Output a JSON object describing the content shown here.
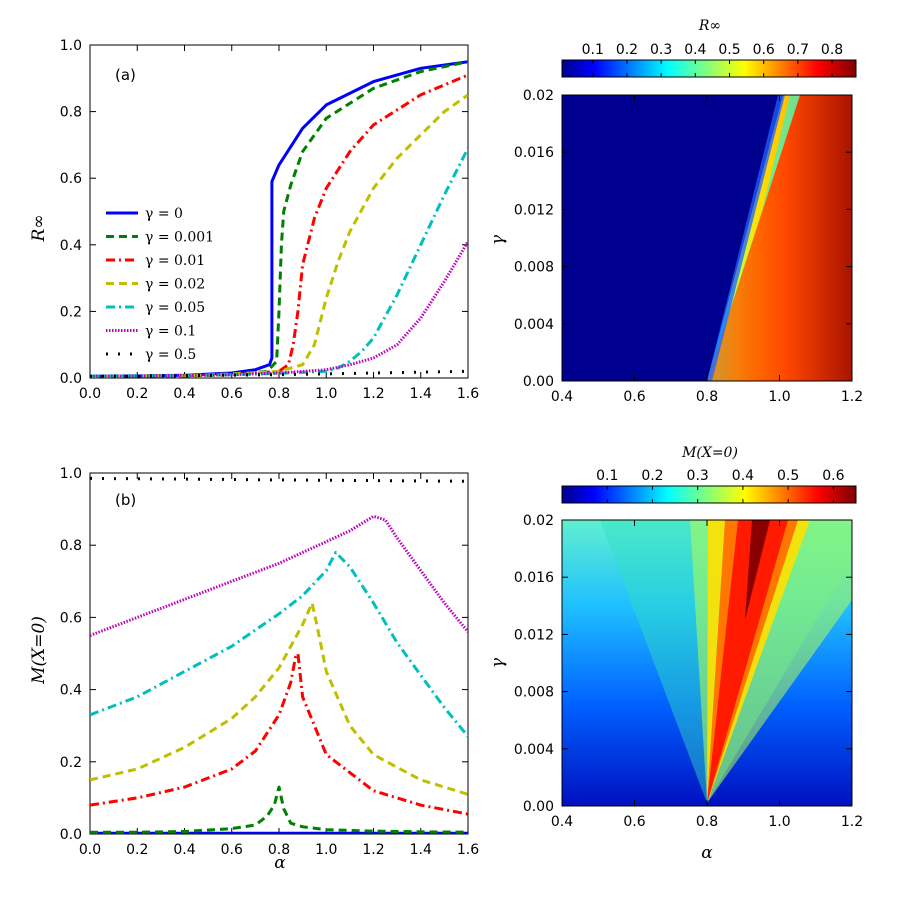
{
  "chart_data": [
    {
      "panel_id": "a",
      "type": "line",
      "panel_label": "(a)",
      "xlabel": "α",
      "ylabel": "R∞",
      "xlim": [
        0,
        1.6
      ],
      "ylim": [
        0,
        1.0
      ],
      "xticks": [
        "0.0",
        "0.2",
        "0.4",
        "0.6",
        "0.8",
        "1.0",
        "1.2",
        "1.4",
        "1.6"
      ],
      "yticks": [
        "0.0",
        "0.2",
        "0.4",
        "0.6",
        "0.8",
        "1.0"
      ],
      "legend_position": "left",
      "series": [
        {
          "name": "γ = 0",
          "color": "#0000ff",
          "style": "solid",
          "x": [
            0,
            0.2,
            0.4,
            0.6,
            0.7,
            0.76,
            0.77,
            0.77,
            0.8,
            0.9,
            1.0,
            1.2,
            1.4,
            1.6
          ],
          "y": [
            0.005,
            0.006,
            0.008,
            0.015,
            0.025,
            0.04,
            0.06,
            0.59,
            0.64,
            0.75,
            0.82,
            0.89,
            0.93,
            0.95
          ]
        },
        {
          "name": "γ = 0.001",
          "color": "#008000",
          "style": "dashed",
          "x": [
            0,
            0.4,
            0.6,
            0.75,
            0.79,
            0.8,
            0.81,
            0.82,
            0.85,
            0.9,
            1.0,
            1.2,
            1.4,
            1.6
          ],
          "y": [
            0.005,
            0.006,
            0.01,
            0.02,
            0.05,
            0.2,
            0.4,
            0.5,
            0.58,
            0.68,
            0.78,
            0.87,
            0.92,
            0.95
          ]
        },
        {
          "name": "γ = 0.01",
          "color": "#ff0000",
          "style": "dashdot",
          "x": [
            0,
            0.4,
            0.6,
            0.8,
            0.84,
            0.86,
            0.88,
            0.9,
            0.95,
            1.0,
            1.1,
            1.2,
            1.4,
            1.6
          ],
          "y": [
            0.005,
            0.007,
            0.01,
            0.02,
            0.04,
            0.1,
            0.2,
            0.34,
            0.48,
            0.57,
            0.68,
            0.76,
            0.85,
            0.91
          ]
        },
        {
          "name": "γ = 0.02",
          "color": "#bfbf00",
          "style": "dashed",
          "x": [
            0,
            0.4,
            0.6,
            0.8,
            0.9,
            0.95,
            1.0,
            1.05,
            1.1,
            1.2,
            1.3,
            1.4,
            1.5,
            1.6
          ],
          "y": [
            0.005,
            0.007,
            0.012,
            0.02,
            0.04,
            0.1,
            0.24,
            0.35,
            0.44,
            0.57,
            0.66,
            0.73,
            0.8,
            0.85
          ]
        },
        {
          "name": "γ = 0.05",
          "color": "#00bfbf",
          "style": "dashdot",
          "x": [
            0,
            0.4,
            0.6,
            0.8,
            1.0,
            1.05,
            1.1,
            1.15,
            1.2,
            1.3,
            1.4,
            1.5,
            1.6
          ],
          "y": [
            0.006,
            0.008,
            0.01,
            0.014,
            0.02,
            0.03,
            0.05,
            0.08,
            0.12,
            0.25,
            0.4,
            0.55,
            0.69
          ]
        },
        {
          "name": "γ = 0.1",
          "color": "#bf00bf",
          "style": "dotted",
          "x": [
            0,
            0.2,
            0.4,
            0.6,
            0.8,
            1.0,
            1.1,
            1.2,
            1.3,
            1.4,
            1.5,
            1.6
          ],
          "y": [
            0.005,
            0.006,
            0.008,
            0.01,
            0.015,
            0.025,
            0.04,
            0.06,
            0.1,
            0.18,
            0.29,
            0.41
          ]
        },
        {
          "name": "γ = 0.5",
          "color": "#000000",
          "style": "dotted-sparse",
          "x": [
            0,
            0.4,
            0.8,
            1.2,
            1.6
          ],
          "y": [
            0.005,
            0.007,
            0.01,
            0.015,
            0.02
          ]
        }
      ]
    },
    {
      "panel_id": "b",
      "type": "line",
      "panel_label": "(b)",
      "xlabel": "α",
      "ylabel": "M(X=0)",
      "xlim": [
        0,
        1.6
      ],
      "ylim": [
        0,
        1.0
      ],
      "xticks": [
        "0.0",
        "0.2",
        "0.4",
        "0.6",
        "0.8",
        "1.0",
        "1.2",
        "1.4",
        "1.6"
      ],
      "yticks": [
        "0.0",
        "0.2",
        "0.4",
        "0.6",
        "0.8",
        "1.0"
      ],
      "series": [
        {
          "name": "γ = 0",
          "color": "#0000ff",
          "style": "solid",
          "x": [
            0,
            1.6
          ],
          "y": [
            0.002,
            0.002
          ]
        },
        {
          "name": "γ = 0.001",
          "color": "#008000",
          "style": "dashed",
          "x": [
            0,
            0.2,
            0.4,
            0.6,
            0.7,
            0.75,
            0.78,
            0.8,
            0.82,
            0.85,
            0.9,
            1.0,
            1.2,
            1.4,
            1.6
          ],
          "y": [
            0.005,
            0.005,
            0.007,
            0.015,
            0.025,
            0.05,
            0.08,
            0.13,
            0.07,
            0.03,
            0.02,
            0.012,
            0.008,
            0.006,
            0.005
          ]
        },
        {
          "name": "γ = 0.01",
          "color": "#ff0000",
          "style": "dashdot",
          "x": [
            0,
            0.2,
            0.4,
            0.6,
            0.7,
            0.8,
            0.85,
            0.87,
            0.88,
            0.9,
            1.0,
            1.2,
            1.4,
            1.6
          ],
          "y": [
            0.08,
            0.1,
            0.13,
            0.18,
            0.23,
            0.33,
            0.42,
            0.49,
            0.5,
            0.38,
            0.22,
            0.12,
            0.08,
            0.055
          ]
        },
        {
          "name": "γ = 0.02",
          "color": "#bfbf00",
          "style": "dashed",
          "x": [
            0,
            0.2,
            0.4,
            0.6,
            0.7,
            0.8,
            0.9,
            0.94,
            0.96,
            1.0,
            1.1,
            1.2,
            1.4,
            1.6
          ],
          "y": [
            0.15,
            0.18,
            0.24,
            0.32,
            0.38,
            0.46,
            0.58,
            0.64,
            0.58,
            0.45,
            0.3,
            0.22,
            0.15,
            0.11
          ]
        },
        {
          "name": "γ = 0.05",
          "color": "#00bfbf",
          "style": "dashdot",
          "x": [
            0,
            0.2,
            0.4,
            0.6,
            0.8,
            0.9,
            1.0,
            1.04,
            1.1,
            1.2,
            1.3,
            1.4,
            1.5,
            1.6
          ],
          "y": [
            0.33,
            0.38,
            0.45,
            0.52,
            0.61,
            0.66,
            0.73,
            0.78,
            0.74,
            0.64,
            0.53,
            0.44,
            0.35,
            0.27
          ]
        },
        {
          "name": "γ = 0.1",
          "color": "#bf00bf",
          "style": "dotted",
          "x": [
            0,
            0.2,
            0.4,
            0.6,
            0.8,
            1.0,
            1.1,
            1.2,
            1.25,
            1.3,
            1.4,
            1.5,
            1.6
          ],
          "y": [
            0.55,
            0.6,
            0.65,
            0.7,
            0.75,
            0.81,
            0.84,
            0.88,
            0.87,
            0.82,
            0.73,
            0.64,
            0.56
          ]
        },
        {
          "name": "γ = 0.5",
          "color": "#000000",
          "style": "dotted-sparse",
          "x": [
            0,
            0.4,
            0.8,
            1.2,
            1.6
          ],
          "y": [
            0.985,
            0.983,
            0.981,
            0.979,
            0.977
          ]
        }
      ]
    },
    {
      "panel_id": "c",
      "type": "heatmap",
      "colorbar_label": "R∞",
      "colorbar_ticks": [
        "0.1",
        "0.2",
        "0.3",
        "0.4",
        "0.5",
        "0.6",
        "0.7",
        "0.8"
      ],
      "colorbar_range": [
        0.01,
        0.87
      ],
      "xlabel": "",
      "ylabel": "γ",
      "xlim": [
        0.4,
        1.2
      ],
      "ylim": [
        0,
        0.02
      ],
      "xticks": [
        "0.4",
        "0.6",
        "0.8",
        "1.0",
        "1.2"
      ],
      "yticks": [
        "0.00",
        "0.004",
        "0.008",
        "0.012",
        "0.016",
        "0.02"
      ],
      "colormap": "jet",
      "description_boundary": "transition from α≈0.8 at γ=0 to α≈0.95 at γ=0.02"
    },
    {
      "panel_id": "d",
      "type": "heatmap",
      "colorbar_label": "M(X=0)",
      "colorbar_ticks": [
        "0.1",
        "0.2",
        "0.3",
        "0.4",
        "0.5",
        "0.6"
      ],
      "colorbar_range": [
        0.0,
        0.65
      ],
      "xlabel": "α",
      "ylabel": "γ",
      "xlim": [
        0.4,
        1.2
      ],
      "ylim": [
        0,
        0.02
      ],
      "xticks": [
        "0.4",
        "0.6",
        "0.8",
        "1.0",
        "1.2"
      ],
      "yticks": [
        "0.00",
        "0.004",
        "0.008",
        "0.012",
        "0.016",
        "0.02"
      ],
      "colormap": "jet",
      "description_peak": "ridge from α≈0.8 at γ=0 widening to α≈0.95 at γ=0.02"
    }
  ]
}
